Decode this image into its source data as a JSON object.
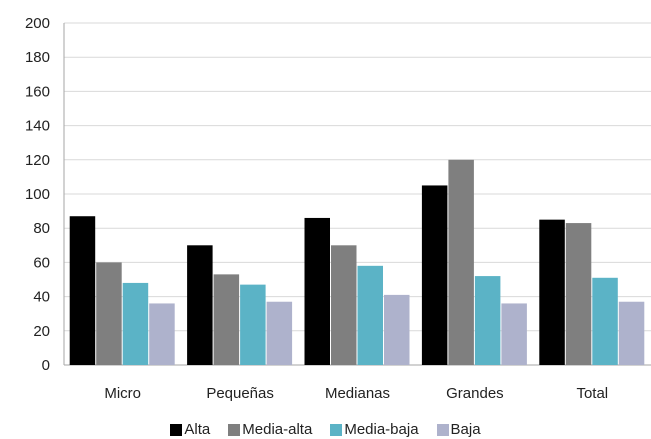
{
  "chart_data": {
    "type": "bar",
    "categories": [
      "Micro",
      "Pequeñas",
      "Medianas",
      "Grandes",
      "Total"
    ],
    "series": [
      {
        "name": "Alta",
        "values": [
          87,
          70,
          86,
          105,
          85
        ],
        "color": "#000000"
      },
      {
        "name": "Media-alta",
        "values": [
          60,
          53,
          70,
          120,
          83
        ],
        "color": "#7f7f7f"
      },
      {
        "name": "Media-baja",
        "values": [
          48,
          47,
          58,
          52,
          51
        ],
        "color": "#5bb3c6"
      },
      {
        "name": "Baja",
        "values": [
          36,
          37,
          41,
          36,
          37
        ],
        "color": "#aeb2cc"
      }
    ],
    "ylim": [
      0,
      200
    ],
    "yticks": [
      "0",
      "20",
      "40",
      "60",
      "80",
      "100",
      "120",
      "140",
      "160",
      "180",
      "200"
    ],
    "title": "",
    "xlabel": "",
    "ylabel": "",
    "grid": true,
    "legend_position": "bottom"
  }
}
